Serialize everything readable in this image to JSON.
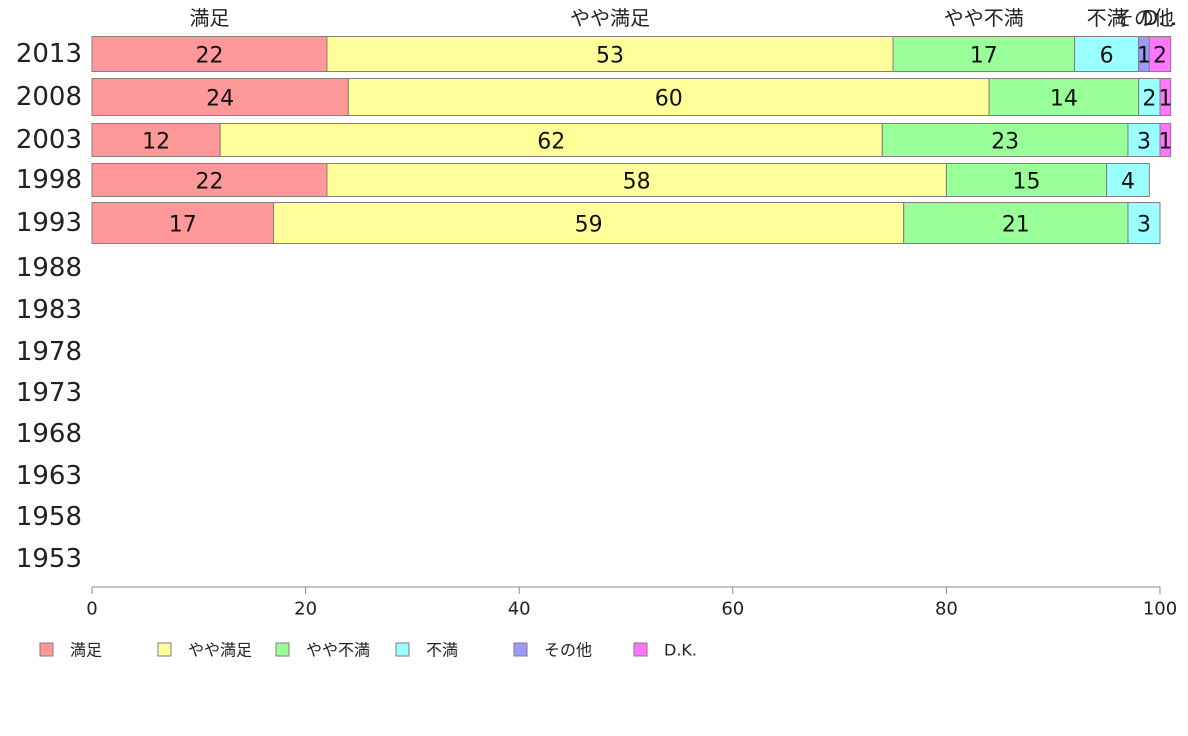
{
  "chart_data": {
    "type": "bar",
    "orientation": "horizontal",
    "stacked": true,
    "categories": [
      "2013",
      "2008",
      "2003",
      "1998",
      "1993",
      "1988",
      "1983",
      "1978",
      "1973",
      "1968",
      "1963",
      "1958",
      "1953"
    ],
    "series": [
      {
        "name": "満足",
        "color": "#ff9999",
        "values": [
          22,
          24,
          12,
          22,
          17,
          null,
          null,
          null,
          null,
          null,
          null,
          null,
          null
        ]
      },
      {
        "name": "やや満足",
        "color": "#ffff99",
        "values": [
          53,
          60,
          62,
          58,
          59,
          null,
          null,
          null,
          null,
          null,
          null,
          null,
          null
        ]
      },
      {
        "name": "やや不満",
        "color": "#99ff99",
        "values": [
          17,
          14,
          23,
          15,
          21,
          null,
          null,
          null,
          null,
          null,
          null,
          null,
          null
        ]
      },
      {
        "name": "不満",
        "color": "#99ffff",
        "values": [
          6,
          2,
          3,
          4,
          3,
          null,
          null,
          null,
          null,
          null,
          null,
          null,
          null
        ]
      },
      {
        "name": "その他",
        "color": "#9999ff",
        "values": [
          1,
          0,
          0,
          0,
          0,
          null,
          null,
          null,
          null,
          null,
          null,
          null,
          null
        ]
      },
      {
        "name": "D.K.",
        "color": "#ff77ff",
        "values": [
          2,
          1,
          1,
          0,
          0,
          null,
          null,
          null,
          null,
          null,
          null,
          null,
          null
        ]
      }
    ],
    "segment_labels": [
      [
        "22",
        "53",
        "17",
        "6",
        "1",
        "2"
      ],
      [
        "24",
        "60",
        "14",
        "2",
        "",
        "1"
      ],
      [
        "12",
        "62",
        "23",
        "3",
        "",
        "1"
      ],
      [
        "22",
        "58",
        "15",
        "4",
        "",
        ""
      ],
      [
        "17",
        "59",
        "21",
        "3",
        "",
        ""
      ],
      [],
      [],
      [],
      [],
      [],
      [],
      [],
      []
    ],
    "top_labels": [
      "満足",
      "やや満足",
      "やや不満",
      "不満",
      "その他",
      "D..."
    ],
    "xlim": [
      0,
      100
    ],
    "xticks": [
      0,
      20,
      40,
      60,
      80,
      100
    ],
    "grid": false,
    "legend_position": "bottom"
  }
}
